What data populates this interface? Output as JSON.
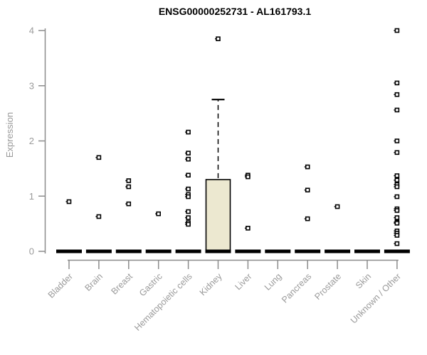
{
  "chart_data": {
    "type": "boxplot",
    "title": "ENSG00000252731 - AL161793.1",
    "ylabel": "Expression",
    "xlabel": "",
    "ylim": [
      0,
      4
    ],
    "yticks": [
      0,
      1,
      2,
      3,
      4
    ],
    "grid": false,
    "legend": "none",
    "box_fill_color": "#ece8d0",
    "axis_color": "#8c8c8c",
    "tick_label_color": "#9a9a9a",
    "title_color": "#000000",
    "categories": [
      {
        "label": "Bladder",
        "median": 0,
        "points": [
          0.9
        ]
      },
      {
        "label": "Brain",
        "median": 0,
        "points": [
          1.7,
          0.63
        ]
      },
      {
        "label": "Breast",
        "median": 0,
        "points": [
          1.28,
          1.17,
          0.86
        ]
      },
      {
        "label": "Gastric",
        "median": 0,
        "points": [
          0.68
        ]
      },
      {
        "label": "Hematopoietic cells",
        "median": 0,
        "points": [
          2.16,
          1.78,
          1.67,
          1.38,
          1.13,
          1.03,
          0.99,
          0.72,
          0.61,
          0.52,
          0.49
        ]
      },
      {
        "label": "Kidney",
        "median": 0,
        "box": {
          "q1": 0,
          "median": 0,
          "q3": 1.3,
          "whisker_high": 2.75
        },
        "points": [
          3.85
        ]
      },
      {
        "label": "Liver",
        "median": 0,
        "points": [
          1.38,
          1.35,
          0.42
        ]
      },
      {
        "label": "Lung",
        "median": 0,
        "points": []
      },
      {
        "label": "Pancreas",
        "median": 0,
        "points": [
          1.53,
          1.11,
          0.59
        ]
      },
      {
        "label": "Prostate",
        "median": 0,
        "points": [
          0.81
        ]
      },
      {
        "label": "Skin",
        "median": 0,
        "points": []
      },
      {
        "label": "Unknown / Other",
        "median": 0,
        "points": [
          4.0,
          3.05,
          2.84,
          2.56,
          2.0,
          1.79,
          1.37,
          1.29,
          1.21,
          1.17,
          0.99,
          0.77,
          0.74,
          0.61,
          0.53,
          0.51,
          0.37,
          0.33,
          0.29,
          0.14
        ]
      }
    ]
  }
}
